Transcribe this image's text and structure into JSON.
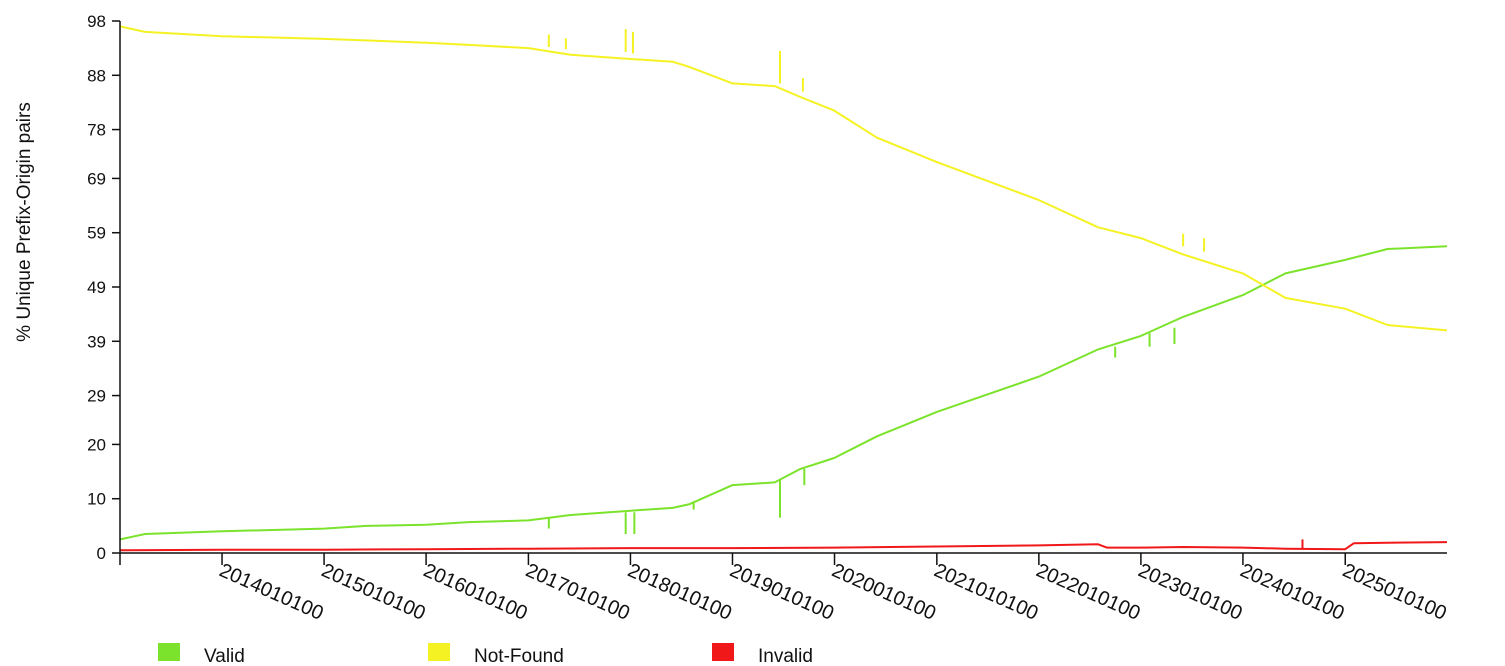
{
  "chart_data": {
    "type": "line",
    "title": "",
    "xlabel": "",
    "ylabel": "% Unique Prefix-Origin pairs",
    "ylim": [
      0,
      98
    ],
    "xlim": [
      "2013-01-01",
      "2025-12-31"
    ],
    "yticks": [
      0,
      10,
      20,
      29,
      39,
      49,
      59,
      69,
      78,
      88,
      98
    ],
    "xticks": [
      "2014010100",
      "2015010100",
      "2016010100",
      "2017010100",
      "2018010100",
      "2019010100",
      "2020010100",
      "2021010100",
      "2022010100",
      "2023010100",
      "2024010100",
      "2025010100"
    ],
    "grid": false,
    "legend_position": "bottom",
    "series": [
      {
        "name": "Valid",
        "color": "#7be32b",
        "x": [
          "2013-01-01",
          "2013-04-01",
          "2014-01-01",
          "2015-01-01",
          "2015-06-01",
          "2016-01-01",
          "2016-06-01",
          "2017-01-01",
          "2017-06-01",
          "2018-01-01",
          "2018-06-01",
          "2018-08-01",
          "2019-01-01",
          "2019-06-01",
          "2019-09-01",
          "2019-12-31",
          "2020-06-01",
          "2021-01-01",
          "2022-01-01",
          "2022-08-01",
          "2023-01-01",
          "2023-06-01",
          "2024-01-01",
          "2024-06-01",
          "2025-01-01",
          "2025-06-01",
          "2025-12-31"
        ],
        "y": [
          2.5,
          3.5,
          4.0,
          4.5,
          5.0,
          5.2,
          5.7,
          6.0,
          7.0,
          7.8,
          8.3,
          9.0,
          12.5,
          13.0,
          15.5,
          17.5,
          21.5,
          26.0,
          32.5,
          37.5,
          40.0,
          43.5,
          47.5,
          51.5,
          54.0,
          56.0,
          56.5
        ]
      },
      {
        "name": "Not-Found",
        "color": "#f5f223",
        "x": [
          "2013-01-01",
          "2013-04-01",
          "2014-01-01",
          "2015-01-01",
          "2016-01-01",
          "2016-06-01",
          "2017-01-01",
          "2017-06-01",
          "2018-01-01",
          "2018-06-01",
          "2018-08-01",
          "2019-01-01",
          "2019-06-01",
          "2019-09-01",
          "2019-12-31",
          "2020-06-01",
          "2021-01-01",
          "2022-01-01",
          "2022-08-01",
          "2023-01-01",
          "2023-06-01",
          "2024-01-01",
          "2024-06-01",
          "2025-01-01",
          "2025-06-01",
          "2025-12-31"
        ],
        "y": [
          97.0,
          96.0,
          95.2,
          94.7,
          94.0,
          93.6,
          93.0,
          91.8,
          91.0,
          90.5,
          89.5,
          86.5,
          86.0,
          84.0,
          81.5,
          76.5,
          72.0,
          65.0,
          60.0,
          58.0,
          55.0,
          51.5,
          47.0,
          45.0,
          42.0,
          41.0
        ]
      },
      {
        "name": "Invalid",
        "color": "#f01818",
        "x": [
          "2013-01-01",
          "2014-01-01",
          "2015-01-01",
          "2016-01-01",
          "2017-01-01",
          "2018-01-01",
          "2019-01-01",
          "2020-01-01",
          "2021-01-01",
          "2022-01-01",
          "2022-08-01",
          "2022-09-01",
          "2023-01-01",
          "2023-06-01",
          "2024-01-01",
          "2024-06-01",
          "2025-01-01",
          "2025-02-01",
          "2025-06-01",
          "2025-12-31"
        ],
        "y": [
          0.5,
          0.6,
          0.6,
          0.7,
          0.8,
          0.9,
          0.9,
          1.0,
          1.2,
          1.4,
          1.6,
          1.0,
          1.0,
          1.1,
          1.0,
          0.8,
          0.7,
          1.8,
          1.9,
          2.0
        ]
      }
    ],
    "spikes": [
      {
        "series": "Not-Found",
        "x": "2017-03-15",
        "from": 93.2,
        "to": 95.5
      },
      {
        "series": "Not-Found",
        "x": "2017-05-15",
        "from": 92.8,
        "to": 94.8
      },
      {
        "series": "Not-Found",
        "x": "2017-12-15",
        "from": 92.3,
        "to": 96.5
      },
      {
        "series": "Not-Found",
        "x": "2018-01-10",
        "from": 92.0,
        "to": 96.0
      },
      {
        "series": "Not-Found",
        "x": "2019-06-20",
        "from": 86.5,
        "to": 92.5
      },
      {
        "series": "Not-Found",
        "x": "2019-09-10",
        "from": 85.0,
        "to": 87.5
      },
      {
        "series": "Not-Found",
        "x": "2023-06-01",
        "from": 56.5,
        "to": 58.8
      },
      {
        "series": "Not-Found",
        "x": "2023-08-15",
        "from": 55.5,
        "to": 58.0
      },
      {
        "series": "Valid",
        "x": "2017-03-15",
        "from": 6.5,
        "to": 4.5
      },
      {
        "series": "Valid",
        "x": "2017-12-15",
        "from": 7.5,
        "to": 3.5
      },
      {
        "series": "Valid",
        "x": "2018-01-15",
        "from": 7.5,
        "to": 3.5
      },
      {
        "series": "Valid",
        "x": "2018-08-15",
        "from": 9.5,
        "to": 8.0
      },
      {
        "series": "Valid",
        "x": "2019-06-20",
        "from": 13.5,
        "to": 6.5
      },
      {
        "series": "Valid",
        "x": "2019-09-15",
        "from": 15.5,
        "to": 12.5
      },
      {
        "series": "Valid",
        "x": "2022-10-01",
        "from": 38.0,
        "to": 36.0
      },
      {
        "series": "Valid",
        "x": "2023-02-01",
        "from": 40.5,
        "to": 38.0
      },
      {
        "series": "Valid",
        "x": "2023-05-01",
        "from": 41.5,
        "to": 38.5
      },
      {
        "series": "Invalid",
        "x": "2024-08-01",
        "from": 0.8,
        "to": 2.5
      }
    ]
  }
}
